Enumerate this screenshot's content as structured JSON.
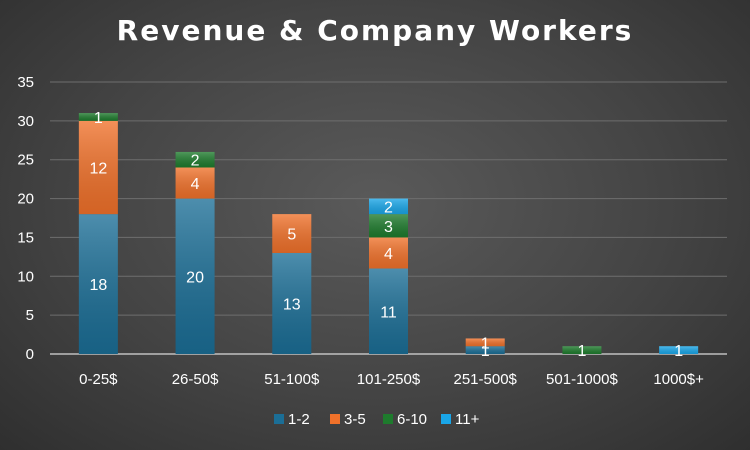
{
  "chart_data": {
    "type": "bar",
    "stacked": true,
    "title": "Revenue & Company Workers",
    "xlabel": "",
    "ylabel": "",
    "categories": [
      "0-25$",
      "26-50$",
      "51-100$",
      "101-250$",
      "251-500$",
      "501-1000$",
      "1000$+"
    ],
    "series": [
      {
        "name": "1-2",
        "color": "#1b6e96",
        "values": [
          18,
          20,
          13,
          11,
          1,
          0,
          0
        ]
      },
      {
        "name": "3-5",
        "color": "#f0712a",
        "values": [
          12,
          4,
          5,
          4,
          1,
          0,
          0
        ]
      },
      {
        "name": "6-10",
        "color": "#1e7b2d",
        "values": [
          1,
          2,
          0,
          3,
          0,
          1,
          0
        ]
      },
      {
        "name": "11+",
        "color": "#1aa6e8",
        "values": [
          0,
          0,
          0,
          2,
          0,
          0,
          1
        ]
      }
    ],
    "ylim": [
      0,
      35
    ],
    "yticks": [
      0,
      5,
      10,
      15,
      20,
      25,
      30,
      35
    ],
    "grid": true,
    "legend": "bottom"
  }
}
